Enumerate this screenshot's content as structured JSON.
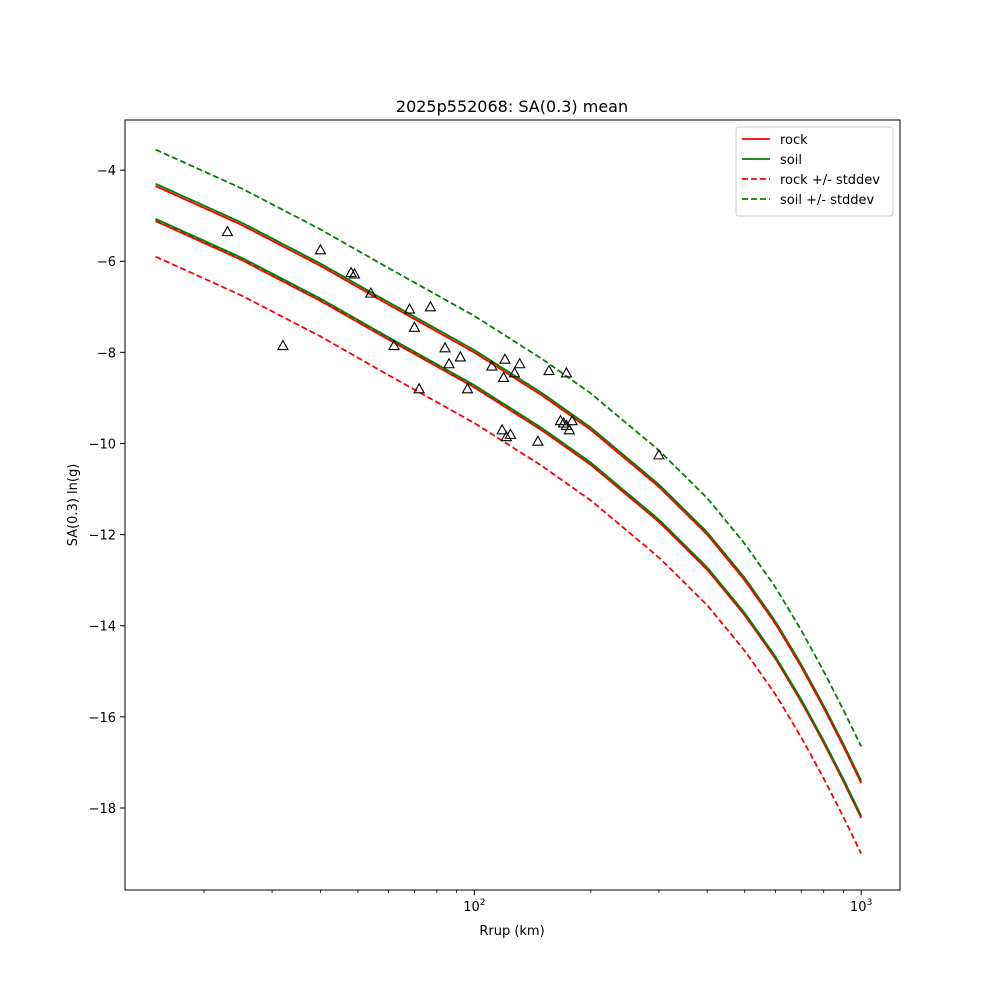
{
  "chart_data": {
    "type": "line",
    "title": "2025p552068: SA(0.3) mean",
    "xlabel": "Rrup (km)",
    "ylabel": "SA(0.3) ln(g)",
    "xscale": "log",
    "xlim": [
      12.5,
      1260
    ],
    "ylim": [
      -19.8,
      -2.9
    ],
    "x_ticks": [
      {
        "value": 100,
        "base": "10",
        "exp": "2"
      },
      {
        "value": 1000,
        "base": "10",
        "exp": "3"
      }
    ],
    "y_ticks": [
      -4,
      -6,
      -8,
      -10,
      -12,
      -14,
      -16,
      -18
    ],
    "grid": false,
    "legend_position": "top-right",
    "series": [
      {
        "name": "rock",
        "color": "#ff0000",
        "dash": "solid",
        "x": [
          15,
          25,
          40,
          60,
          100,
          150,
          200,
          300,
          400,
          500,
          600,
          700,
          800,
          900,
          1000
        ],
        "y": [
          -4.35,
          -5.2,
          -6.1,
          -6.95,
          -8.0,
          -8.95,
          -9.7,
          -10.95,
          -12.0,
          -13.0,
          -13.95,
          -14.9,
          -15.8,
          -16.65,
          -17.45
        ]
      },
      {
        "name": "soil",
        "color": "#008000",
        "dash": "solid",
        "x": [
          15,
          25,
          40,
          60,
          100,
          150,
          200,
          300,
          400,
          500,
          600,
          700,
          800,
          900,
          1000
        ],
        "y": [
          -4.3,
          -5.15,
          -6.05,
          -6.9,
          -7.95,
          -8.9,
          -9.65,
          -10.9,
          -11.95,
          -12.95,
          -13.9,
          -14.85,
          -15.75,
          -16.6,
          -17.4
        ]
      },
      {
        "name": "rock +/- stddev",
        "color": "#ff0000",
        "dash": "dashed",
        "x": [
          15,
          25,
          40,
          60,
          100,
          150,
          200,
          300,
          400,
          500,
          600,
          700,
          800,
          900,
          1000
        ],
        "y": [
          -5.9,
          -6.75,
          -7.65,
          -8.5,
          -9.55,
          -10.5,
          -11.25,
          -12.5,
          -13.55,
          -14.55,
          -15.5,
          -16.45,
          -17.35,
          -18.2,
          -19.0
        ]
      },
      {
        "name": "",
        "color": "#ff0000",
        "dash": "dashed",
        "x": [
          15,
          25,
          40,
          60,
          100,
          150,
          200,
          300,
          400,
          500,
          600,
          700,
          800,
          900,
          1000
        ],
        "y": [
          -4.35,
          -5.2,
          -6.1,
          -6.95,
          -8.0,
          -8.95,
          -9.7,
          -10.95,
          -12.0,
          -13.0,
          -13.95,
          -14.9,
          -15.8,
          -16.65,
          -17.45
        ]
      },
      {
        "name": "soil +/- stddev",
        "color": "#008000",
        "dash": "dashed",
        "x": [
          15,
          25,
          40,
          60,
          100,
          150,
          200,
          300,
          400,
          500,
          600,
          700,
          800,
          900,
          1000
        ],
        "y": [
          -3.55,
          -4.4,
          -5.3,
          -6.15,
          -7.2,
          -8.15,
          -8.9,
          -10.15,
          -11.2,
          -12.2,
          -13.15,
          -14.1,
          -15.0,
          -15.85,
          -16.65
        ]
      },
      {
        "name": "",
        "color": "#008000",
        "dash": "dashed",
        "x": [
          15,
          25,
          40,
          60,
          100,
          150,
          200,
          300,
          400,
          500,
          600,
          700,
          800,
          900,
          1000
        ],
        "y": [
          -5.1,
          -5.95,
          -6.85,
          -7.7,
          -8.75,
          -9.7,
          -10.45,
          -11.7,
          -12.75,
          -13.75,
          -14.7,
          -15.65,
          -16.55,
          -17.4,
          -18.2
        ]
      },
      {
        "name": "",
        "color": "#ff0000",
        "dash": "solid",
        "x": [
          15,
          25,
          40,
          60,
          100,
          150,
          200,
          300,
          400,
          500,
          600,
          700,
          800,
          900,
          1000
        ],
        "y": [
          -5.12,
          -5.97,
          -6.87,
          -7.72,
          -8.77,
          -9.72,
          -10.47,
          -11.72,
          -12.77,
          -13.77,
          -14.72,
          -15.67,
          -16.57,
          -17.42,
          -18.22
        ]
      },
      {
        "name": "",
        "color": "#008000",
        "dash": "solid",
        "x": [
          15,
          25,
          40,
          60,
          100,
          150,
          200,
          300,
          400,
          500,
          600,
          700,
          800,
          900,
          1000
        ],
        "y": [
          -5.07,
          -5.92,
          -6.82,
          -7.67,
          -8.72,
          -9.67,
          -10.42,
          -11.67,
          -12.72,
          -13.72,
          -14.67,
          -15.62,
          -16.52,
          -17.37,
          -18.17
        ]
      }
    ],
    "observations": {
      "marker": "triangle-open",
      "color": "#000000",
      "x": [
        23,
        32,
        40,
        48,
        49,
        54,
        62,
        68,
        70,
        72,
        77,
        84,
        86,
        92,
        96,
        111,
        118,
        119,
        120,
        121,
        124,
        127,
        131,
        146,
        156,
        167,
        170,
        173,
        179,
        173,
        176,
        300
      ],
      "y": [
        -5.35,
        -7.85,
        -5.75,
        -6.25,
        -6.28,
        -6.7,
        -7.85,
        -7.05,
        -7.45,
        -8.8,
        -7.0,
        -7.9,
        -8.25,
        -8.1,
        -8.8,
        -8.3,
        -9.7,
        -8.55,
        -8.15,
        -9.85,
        -9.8,
        -8.45,
        -8.25,
        -9.95,
        -8.4,
        -9.5,
        -9.55,
        -8.45,
        -9.5,
        -9.6,
        -9.7,
        -10.25
      ]
    }
  }
}
